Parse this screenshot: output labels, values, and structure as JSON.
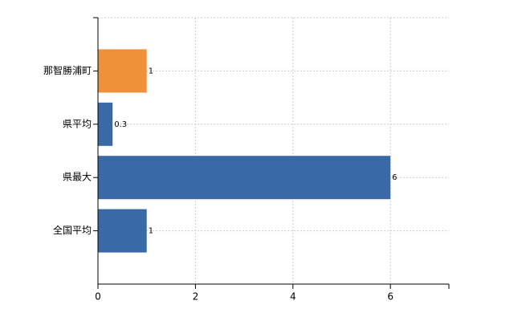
{
  "chart_data": {
    "type": "bar",
    "orientation": "horizontal",
    "categories": [
      "那智勝浦町",
      "県平均",
      "県最大",
      "全国平均"
    ],
    "values": [
      1,
      0.3,
      6,
      1
    ],
    "colors": [
      "#ee9139",
      "#3a6aa6",
      "#3a6aa6",
      "#3a6aa6"
    ],
    "xlim": [
      0,
      7.2
    ],
    "xticks": [
      0,
      2,
      4,
      6
    ],
    "grid": true
  }
}
